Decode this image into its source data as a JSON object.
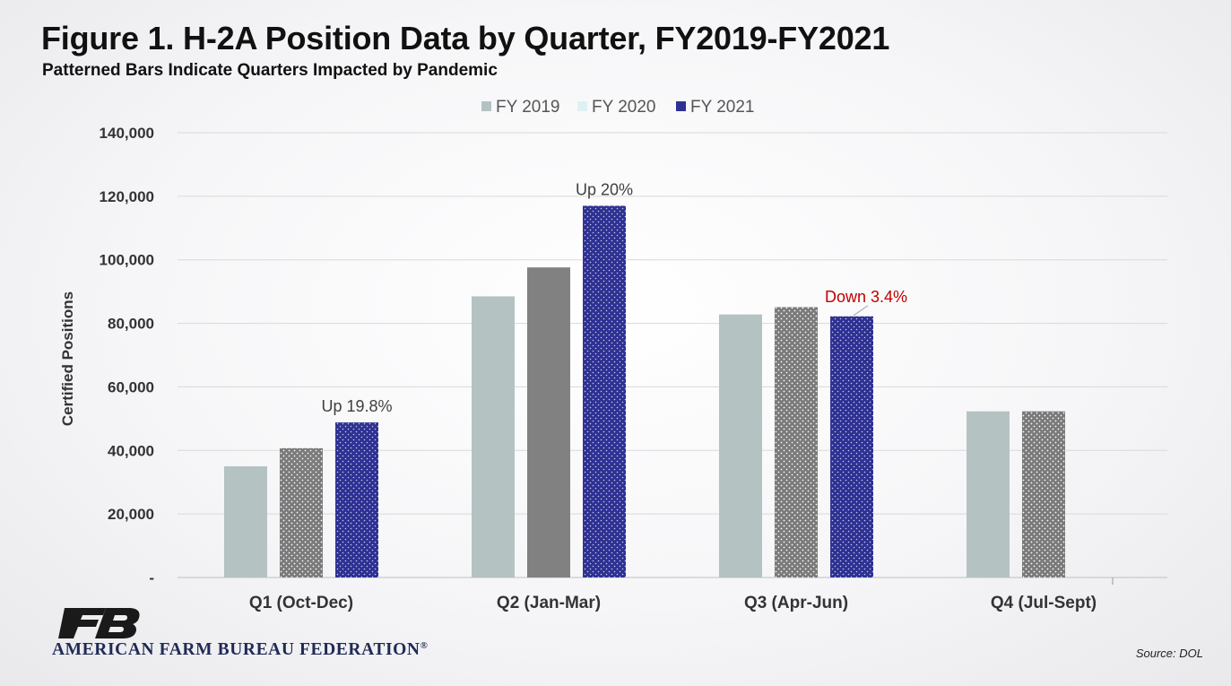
{
  "title": "Figure 1. H-2A Position Data by Quarter, FY2019-FY2021",
  "subtitle": "Patterned Bars Indicate Quarters Impacted by Pandemic",
  "source": "Source: DOL",
  "org": {
    "name": "AMERICAN FARM BUREAU FEDERATION",
    "mark": "®",
    "logo_icon": "afbf-logo-icon"
  },
  "colors": {
    "fy2019": "#b4c2c2",
    "fy2020": "#818181",
    "fy2021": "#2e3192",
    "down_annotation": "#c00000",
    "up_annotation": "#404040",
    "grid": "#d9d9d9",
    "brand": "#1f2a55"
  },
  "chart_data": {
    "type": "bar",
    "title": "Figure 1. H-2A Position Data by Quarter, FY2019-FY2021",
    "subtitle": "Patterned Bars Indicate Quarters Impacted by Pandemic",
    "xlabel": "",
    "ylabel": "Certified Positions",
    "ylim": [
      0,
      140000
    ],
    "yticks": [
      0,
      20000,
      40000,
      60000,
      80000,
      100000,
      120000,
      140000
    ],
    "ytick_labels": [
      "-",
      "20,000",
      "40,000",
      "60,000",
      "80,000",
      "100,000",
      "120,000",
      "140,000"
    ],
    "grid": true,
    "legend_position": "top-center",
    "categories": [
      "Q1 (Oct-Dec)",
      "Q2 (Jan-Mar)",
      "Q3 (Apr-Jun)",
      "Q4 (Jul-Sept)"
    ],
    "series": [
      {
        "name": "FY 2019",
        "values": [
          35000,
          88500,
          82800,
          52300
        ],
        "patterned": [
          false,
          false,
          false,
          false
        ]
      },
      {
        "name": "FY 2020",
        "values": [
          40700,
          97600,
          85100,
          52300
        ],
        "patterned": [
          true,
          false,
          true,
          true
        ]
      },
      {
        "name": "FY 2021",
        "values": [
          48800,
          117000,
          82200,
          null
        ],
        "patterned": [
          true,
          true,
          true,
          false
        ]
      }
    ],
    "annotations": [
      {
        "text": "Up 19.8%",
        "category": 0,
        "series": 2,
        "kind": "up"
      },
      {
        "text": "Up 20%",
        "category": 1,
        "series": 2,
        "kind": "up"
      },
      {
        "text": "Down 3.4%",
        "category": 2,
        "series": 2,
        "kind": "down"
      }
    ]
  }
}
